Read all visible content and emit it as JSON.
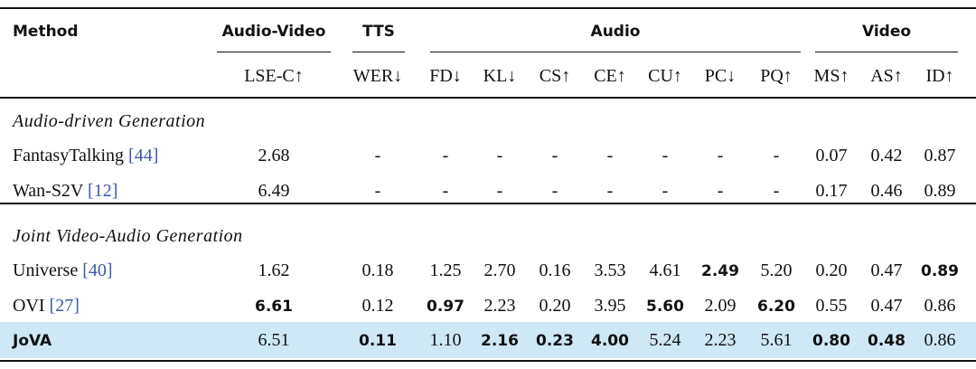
{
  "columns": {
    "method": "Method",
    "groups": [
      "Audio-Video",
      "TTS",
      "Audio",
      "Video"
    ],
    "metrics": [
      "LSE-C↑",
      "WER↓",
      "FD↓",
      "KL↓",
      "CS↑",
      "CE↑",
      "CU↑",
      "PC↓",
      "PQ↑",
      "MS↑",
      "AS↑",
      "ID↑"
    ]
  },
  "sections": [
    {
      "title": "Audio-driven Generation",
      "rows": [
        {
          "method": "FantasyTalking",
          "cite": "[44]",
          "cells": [
            "2.68",
            "-",
            "-",
            "-",
            "-",
            "-",
            "-",
            "-",
            "-",
            "0.07",
            "0.42",
            "0.87"
          ]
        },
        {
          "method": "Wan-S2V",
          "cite": "[12]",
          "cells": [
            "6.49",
            "-",
            "-",
            "-",
            "-",
            "-",
            "-",
            "-",
            "-",
            "0.17",
            "0.46",
            "0.89"
          ]
        }
      ]
    },
    {
      "title": "Joint Video-Audio Generation",
      "rows": [
        {
          "method": "Universe",
          "cite": "[40]",
          "cells": [
            "1.62",
            "0.18",
            "1.25",
            "2.70",
            "0.16",
            "3.53",
            "4.61",
            "2.49",
            "5.20",
            "0.20",
            "0.47",
            "0.89"
          ]
        },
        {
          "method": "OVI",
          "cite": "[27]",
          "cells": [
            "6.61",
            "0.12",
            "0.97",
            "2.23",
            "0.20",
            "3.95",
            "5.60",
            "2.09",
            "6.20",
            "0.55",
            "0.47",
            "0.86"
          ]
        },
        {
          "method": "JoVA",
          "cells": [
            "6.51",
            "0.11",
            "1.10",
            "2.16",
            "0.23",
            "4.00",
            "5.24",
            "2.23",
            "5.61",
            "0.80",
            "0.48",
            "0.86"
          ]
        }
      ]
    }
  ]
}
